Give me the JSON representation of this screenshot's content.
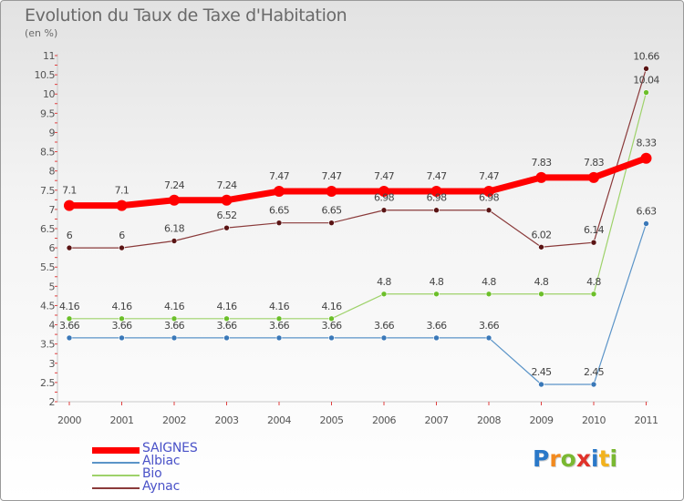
{
  "title": "Evolution du Taux de Taxe d'Habitation",
  "subtitle": "(en %)",
  "logo": "Proxiti",
  "logo_colors": [
    "#2a78c8",
    "#f28a1e",
    "#7ab832",
    "#e0322a",
    "#2a78c8",
    "#f2b21e",
    "#7ab832"
  ],
  "chart_data": {
    "type": "line",
    "title": "Evolution du Taux de Taxe d'Habitation",
    "ylabel": "(en %)",
    "xlabel": "",
    "categories": [
      "2000",
      "2001",
      "2002",
      "2003",
      "2004",
      "2005",
      "2006",
      "2007",
      "2008",
      "2009",
      "2010",
      "2011"
    ],
    "ylim": [
      2,
      11
    ],
    "yticks": [
      "2",
      "2.5",
      "3",
      "3.5",
      "4",
      "4.5",
      "5",
      "5.5",
      "6",
      "6.5",
      "7",
      "7.5",
      "8",
      "8.5",
      "9",
      "9.5",
      "10",
      "10.5",
      "11"
    ],
    "legend_position": "bottom-left",
    "series": [
      {
        "name": "Albiac",
        "color": "#5b94c8",
        "marker": "#3a78b8",
        "width": 1.2,
        "values": [
          3.66,
          3.66,
          3.66,
          3.66,
          3.66,
          3.66,
          3.66,
          3.66,
          3.66,
          2.45,
          2.45,
          6.63
        ],
        "labels": [
          "3.66",
          "3.66",
          "3.66",
          "3.66",
          "3.66",
          "3.66",
          "3.66",
          "3.66",
          "3.66",
          "2.45",
          "2.45",
          "6.63"
        ]
      },
      {
        "name": "Bio",
        "color": "#9ed26a",
        "marker": "#6cbf2a",
        "width": 1.2,
        "values": [
          4.16,
          4.16,
          4.16,
          4.16,
          4.16,
          4.16,
          4.8,
          4.8,
          4.8,
          4.8,
          4.8,
          10.04
        ],
        "labels": [
          "4.16",
          "4.16",
          "4.16",
          "4.16",
          "4.16",
          "4.16",
          "4.8",
          "4.8",
          "4.8",
          "4.8",
          "4.8",
          "10.04"
        ]
      },
      {
        "name": "Aynac",
        "color": "#8a3a3a",
        "marker": "#5a1414",
        "width": 1.2,
        "values": [
          6,
          6,
          6.18,
          6.52,
          6.65,
          6.65,
          6.98,
          6.98,
          6.98,
          6.02,
          6.14,
          10.66
        ],
        "labels": [
          "6",
          "6",
          "6.18",
          "6.52",
          "6.65",
          "6.65",
          "6.98",
          "6.98",
          "6.98",
          "6.02",
          "6.14",
          "10.66"
        ]
      },
      {
        "name": "SAIGNES",
        "color": "#ff0000",
        "marker": "#ff0000",
        "width": 7,
        "values": [
          7.1,
          7.1,
          7.24,
          7.24,
          7.47,
          7.47,
          7.47,
          7.47,
          7.47,
          7.83,
          7.83,
          8.33
        ],
        "labels": [
          "7.1",
          "7.1",
          "7.24",
          "7.24",
          "7.47",
          "7.47",
          "7.47",
          "7.47",
          "7.47",
          "7.83",
          "7.83",
          "8.33"
        ]
      }
    ]
  },
  "legend": [
    {
      "name": "SAIGNES",
      "color": "#ff0000",
      "thickness": 7
    },
    {
      "name": "Albiac",
      "color": "#5b94c8",
      "thickness": 2
    },
    {
      "name": "Bio",
      "color": "#9ed26a",
      "thickness": 2
    },
    {
      "name": "Aynac",
      "color": "#8a3a3a",
      "thickness": 2
    }
  ]
}
